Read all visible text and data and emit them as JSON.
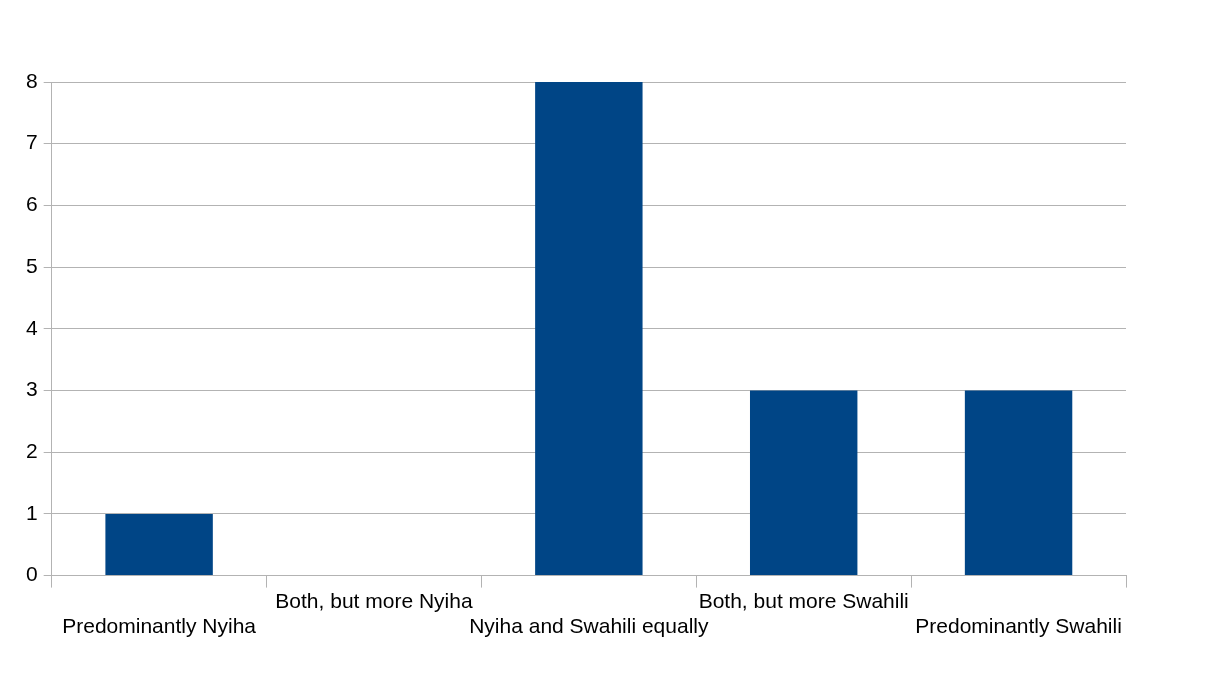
{
  "chart_data": {
    "type": "bar",
    "categories": [
      "Predominantly Nyiha",
      "Both, but more Nyiha",
      "Nyiha and Swahili equally",
      "Both, but more Swahili",
      "Predominantly Swahili"
    ],
    "values": [
      1,
      0,
      8,
      3,
      3
    ],
    "color": "#004586",
    "ylim": [
      0,
      8
    ],
    "yticks": [
      0,
      1,
      2,
      3,
      4,
      5,
      6,
      7,
      8
    ],
    "grid": "y",
    "legend": false
  }
}
